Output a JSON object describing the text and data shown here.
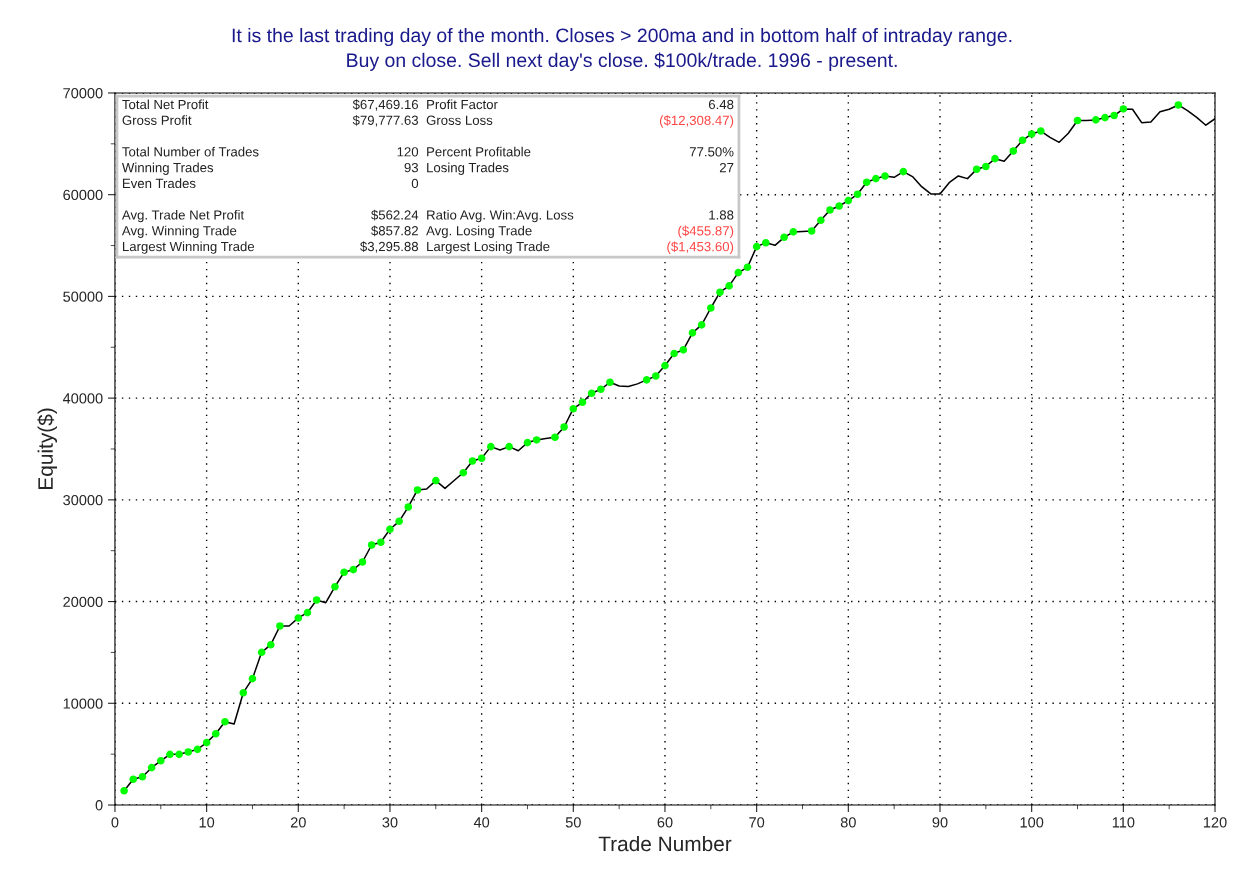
{
  "chart_data": [
    {
      "type": "line",
      "title": "It is the last trading day of the month. Closes > 200ma and in bottom half of intraday range.",
      "subtitle": "Buy on close. Sell next day's close. $100k/trade. 1996 - present.",
      "xlabel": "Trade Number",
      "ylabel": "Equity($)",
      "xlim": [
        0,
        120
      ],
      "xticks": [
        0,
        10,
        20,
        30,
        40,
        50,
        60,
        70,
        80,
        90,
        100,
        110,
        120
      ],
      "ylim": [
        0,
        70000
      ],
      "yticks": [
        0,
        10000,
        20000,
        30000,
        40000,
        50000,
        60000,
        70000
      ],
      "grid": true,
      "legend": false,
      "series": [
        {
          "type": "line",
          "color": "#000000",
          "marker": "none",
          "line_style": "solid",
          "x": [
            1,
            2,
            3,
            4,
            5,
            6,
            7,
            8,
            9,
            10,
            11,
            12,
            13,
            14,
            15,
            16,
            17,
            18,
            19,
            20,
            21,
            22,
            23,
            24,
            25,
            26,
            27,
            28,
            29,
            30,
            31,
            32,
            33,
            34,
            35,
            36,
            37,
            38,
            39,
            40,
            41,
            42,
            43,
            44,
            45,
            46,
            47,
            48,
            49,
            50,
            51,
            52,
            53,
            54,
            55,
            56,
            57,
            58,
            59,
            60,
            61,
            62,
            63,
            64,
            65,
            66,
            67,
            68,
            69,
            70,
            71,
            72,
            73,
            74,
            75,
            76,
            77,
            78,
            79,
            80,
            81,
            82,
            83,
            84,
            85,
            86,
            87,
            88,
            89,
            90,
            91,
            92,
            93,
            94,
            95,
            96,
            97,
            98,
            99,
            100,
            101,
            102,
            103,
            104,
            105,
            106,
            107,
            108,
            109,
            110,
            111,
            112,
            113,
            114,
            115,
            116,
            117,
            118,
            119,
            120
          ],
          "values": [
            1400,
            2530,
            2780,
            3670,
            4350,
            4980,
            4980,
            5210,
            5470,
            6130,
            7010,
            8190,
            7960,
            11040,
            12420,
            15010,
            15760,
            17600,
            17600,
            18390,
            18910,
            20150,
            19890,
            21460,
            22880,
            23140,
            23890,
            25560,
            25830,
            27110,
            27890,
            29300,
            30970,
            31070,
            31890,
            31130,
            31900,
            32670,
            33820,
            34090,
            35230,
            34900,
            35230,
            34830,
            35630,
            35890,
            36020,
            36150,
            37160,
            38960,
            39590,
            40480,
            40870,
            41560,
            41200,
            41150,
            41400,
            41790,
            42180,
            43200,
            44380,
            44740,
            46410,
            47200,
            48860,
            50410,
            51030,
            52340,
            52860,
            54890,
            55280,
            55020,
            55810,
            56340,
            56380,
            56430,
            57480,
            58500,
            58890,
            59420,
            60040,
            61220,
            61580,
            61840,
            61710,
            62270,
            61780,
            60790,
            60070,
            60070,
            61180,
            61840,
            61580,
            62500,
            62770,
            63540,
            63290,
            64300,
            65350,
            65970,
            66260,
            65640,
            65150,
            66040,
            67290,
            67300,
            67350,
            67580,
            67780,
            68430,
            68400,
            67080,
            67150,
            68150,
            68400,
            68820,
            68260,
            67600,
            66830,
            67470
          ]
        },
        {
          "type": "scatter",
          "color": "#00ff00",
          "marker": "circle",
          "x": [
            1,
            2,
            3,
            4,
            5,
            6,
            7,
            8,
            9,
            10,
            11,
            12,
            14,
            15,
            16,
            17,
            18,
            20,
            21,
            22,
            24,
            25,
            26,
            27,
            28,
            29,
            30,
            31,
            32,
            33,
            35,
            38,
            39,
            40,
            41,
            43,
            45,
            46,
            48,
            49,
            50,
            51,
            52,
            53,
            54,
            58,
            59,
            60,
            61,
            62,
            63,
            64,
            65,
            66,
            67,
            68,
            69,
            70,
            71,
            73,
            74,
            76,
            77,
            78,
            79,
            80,
            81,
            82,
            83,
            84,
            86,
            94,
            95,
            96,
            98,
            99,
            100,
            101,
            105,
            107,
            108,
            109,
            110,
            116
          ],
          "values": [
            1400,
            2530,
            2780,
            3670,
            4350,
            4980,
            4980,
            5210,
            5470,
            6130,
            7010,
            8190,
            11040,
            12420,
            15010,
            15760,
            17600,
            18390,
            18910,
            20150,
            21460,
            22880,
            23140,
            23890,
            25560,
            25830,
            27110,
            27890,
            29300,
            30970,
            31890,
            32670,
            33820,
            34090,
            35230,
            35230,
            35630,
            35890,
            36150,
            37160,
            38960,
            39590,
            40480,
            40870,
            41560,
            41790,
            42180,
            43200,
            44380,
            44740,
            46410,
            47200,
            48860,
            50410,
            51030,
            52340,
            52860,
            54890,
            55280,
            55810,
            56340,
            56430,
            57480,
            58500,
            58890,
            59420,
            60040,
            61220,
            61580,
            61840,
            62270,
            62500,
            62770,
            63540,
            64300,
            65350,
            65970,
            66260,
            67290,
            67350,
            67580,
            67780,
            68430,
            68820
          ]
        }
      ]
    },
    {
      "type": "other",
      "cells": [
        [
          "Total Net Profit",
          "$67,469.16",
          "Profit Factor",
          "6.48"
        ],
        [
          "Gross Profit",
          "$79,777.63",
          "Gross Loss",
          "($12,308.47)"
        ],
        [
          null,
          null,
          null,
          null
        ],
        [
          "Total Number of Trades",
          "120",
          "Percent Profitable",
          "77.50%"
        ],
        [
          "Winning Trades",
          "93",
          "Losing Trades",
          "27"
        ],
        [
          "Even Trades",
          "0",
          null,
          null
        ],
        [
          null,
          null,
          null,
          null
        ],
        [
          "Avg. Trade Net Profit",
          "$562.24",
          "Ratio Avg. Win:Avg. Loss",
          "1.88"
        ],
        [
          "Avg. Winning Trade",
          "$857.82",
          "Avg. Losing Trade",
          "($455.87)"
        ],
        [
          "Largest Winning Trade",
          "$3,295.88",
          "Largest Losing Trade",
          "($1,453.60)"
        ]
      ],
      "colors": [
        [
          "#222222",
          "#222222",
          "#222222",
          "#222222"
        ],
        [
          "#222222",
          "#222222",
          "#222222",
          "#ff4444"
        ],
        [
          "#222222",
          "#222222",
          "#222222",
          "#222222"
        ],
        [
          "#222222",
          "#222222",
          "#222222",
          "#222222"
        ],
        [
          "#222222",
          "#222222",
          "#222222",
          "#222222"
        ],
        [
          "#222222",
          "#222222",
          "#222222",
          "#222222"
        ],
        [
          "#222222",
          "#222222",
          "#222222",
          "#222222"
        ],
        [
          "#222222",
          "#222222",
          "#222222",
          "#222222"
        ],
        [
          "#222222",
          "#222222",
          "#222222",
          "#ff4444"
        ],
        [
          "#222222",
          "#222222",
          "#222222",
          "#ff4444"
        ]
      ]
    }
  ]
}
